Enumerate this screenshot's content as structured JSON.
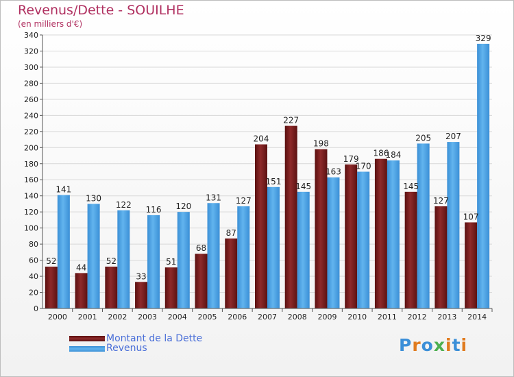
{
  "title": "Revenus/Dette - SOUILHE",
  "subtitle": "(en milliers d'€)",
  "logo": {
    "text": "Proxiti",
    "colors": [
      "#3b8fd8",
      "#e07b1f",
      "#3b8fd8",
      "#4caf50",
      "#e07b1f",
      "#3b8fd8",
      "#e07b1f"
    ]
  },
  "colors": {
    "dette": "#7a1a1a",
    "revenus": "#4da3e6",
    "title": "#b03060",
    "legend_text": "#4a6fd8"
  },
  "chart_data": {
    "type": "bar",
    "categories": [
      "2000",
      "2001",
      "2002",
      "2003",
      "2004",
      "2005",
      "2006",
      "2007",
      "2008",
      "2009",
      "2010",
      "2011",
      "2012",
      "2013",
      "2014"
    ],
    "series": [
      {
        "name": "Montant de la Dette",
        "values": [
          52,
          44,
          52,
          33,
          51,
          68,
          87,
          204,
          227,
          198,
          179,
          186,
          145,
          127,
          107
        ]
      },
      {
        "name": "Revenus",
        "values": [
          141,
          130,
          122,
          116,
          120,
          131,
          127,
          151,
          145,
          163,
          170,
          184,
          205,
          207,
          329
        ]
      }
    ],
    "ylim": [
      0,
      340
    ],
    "yticks": [
      0,
      20,
      40,
      60,
      80,
      100,
      120,
      140,
      160,
      180,
      200,
      220,
      240,
      260,
      280,
      300,
      320,
      340
    ],
    "grid": true,
    "legend": "bottom-left"
  }
}
